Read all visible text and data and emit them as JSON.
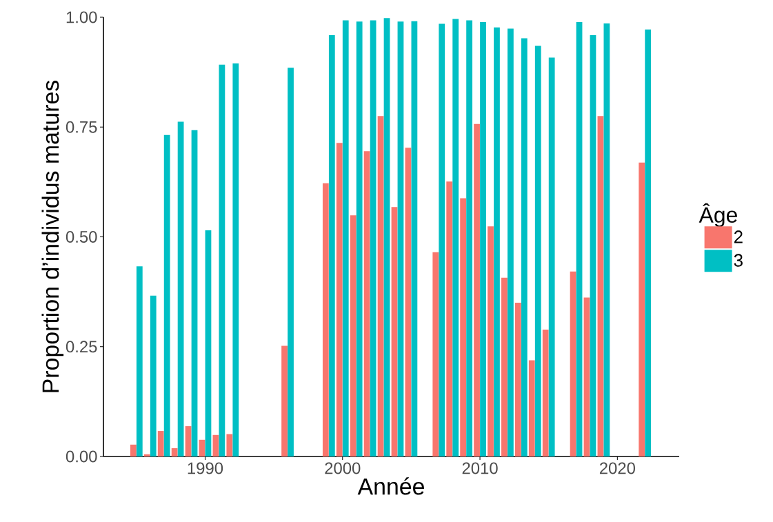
{
  "chart_data": {
    "type": "bar",
    "xlabel": "Année",
    "ylabel": "Proportion d’individus matures",
    "legend_title": "Âge",
    "legend": "right",
    "grid": false,
    "x": [
      1985,
      1986,
      1987,
      1988,
      1989,
      1990,
      1991,
      1992,
      1996,
      1999,
      2000,
      2001,
      2002,
      2003,
      2004,
      2005,
      2007,
      2008,
      2009,
      2010,
      2011,
      2012,
      2013,
      2014,
      2015,
      2017,
      2018,
      2019,
      2022
    ],
    "series": [
      {
        "name": "2",
        "color": "#f8766d",
        "values": [
          0.027,
          0.005,
          0.058,
          0.019,
          0.069,
          0.038,
          0.049,
          0.051,
          0.252,
          0.622,
          0.714,
          0.549,
          0.695,
          0.775,
          0.568,
          0.703,
          0.465,
          0.626,
          0.588,
          0.757,
          0.524,
          0.407,
          0.35,
          0.219,
          0.289,
          0.421,
          0.362,
          0.775,
          0.669
        ]
      },
      {
        "name": "3",
        "color": "#00bfc4",
        "values": [
          0.433,
          0.366,
          0.732,
          0.762,
          0.743,
          0.515,
          0.892,
          0.895,
          0.885,
          0.959,
          0.993,
          0.99,
          0.993,
          0.998,
          0.99,
          0.991,
          0.985,
          0.996,
          0.993,
          0.989,
          0.977,
          0.974,
          0.952,
          0.935,
          0.908,
          0.989,
          0.959,
          0.986,
          0.972
        ]
      }
    ],
    "xlim": [
      1982.6,
      2024.5
    ],
    "xticks": [
      1990,
      2000,
      2010,
      2020
    ],
    "ylim": [
      0,
      1
    ],
    "yticks": [
      {
        "value": 0,
        "label": "0.00"
      },
      {
        "value": 0.25,
        "label": "0.25"
      },
      {
        "value": 0.5,
        "label": "0.50"
      },
      {
        "value": 0.75,
        "label": "0.75"
      },
      {
        "value": 1,
        "label": "1.00"
      }
    ]
  }
}
